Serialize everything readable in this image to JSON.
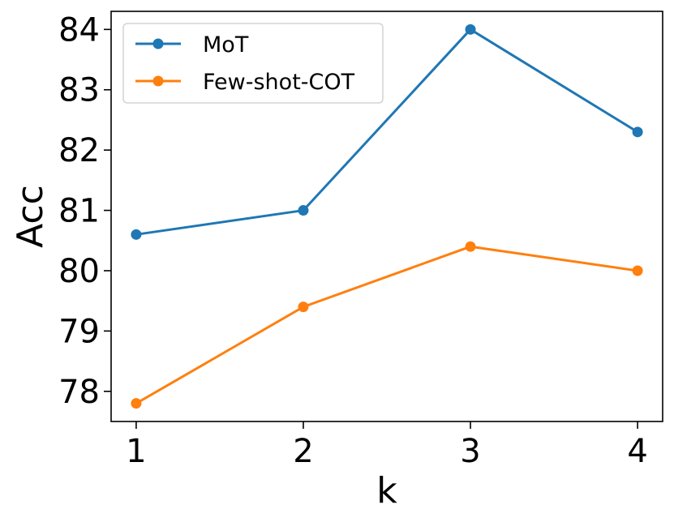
{
  "chart_data": {
    "type": "line",
    "x": [
      1,
      2,
      3,
      4
    ],
    "series": [
      {
        "name": "MoT",
        "values": [
          80.6,
          81.0,
          84.0,
          82.3
        ],
        "color": "#1f77b4"
      },
      {
        "name": "Few-shot-COT",
        "values": [
          77.8,
          79.4,
          80.4,
          80.0
        ],
        "color": "#ff7f0e"
      }
    ],
    "xlabel": "k",
    "ylabel": "Acc",
    "xticks": [
      "1",
      "2",
      "3",
      "4"
    ],
    "yticks": [
      "78",
      "79",
      "80",
      "81",
      "82",
      "83",
      "84"
    ],
    "xlim": [
      0.85,
      4.15
    ],
    "ylim": [
      77.5,
      84.3
    ],
    "grid": false,
    "legend_position": "top-left"
  }
}
